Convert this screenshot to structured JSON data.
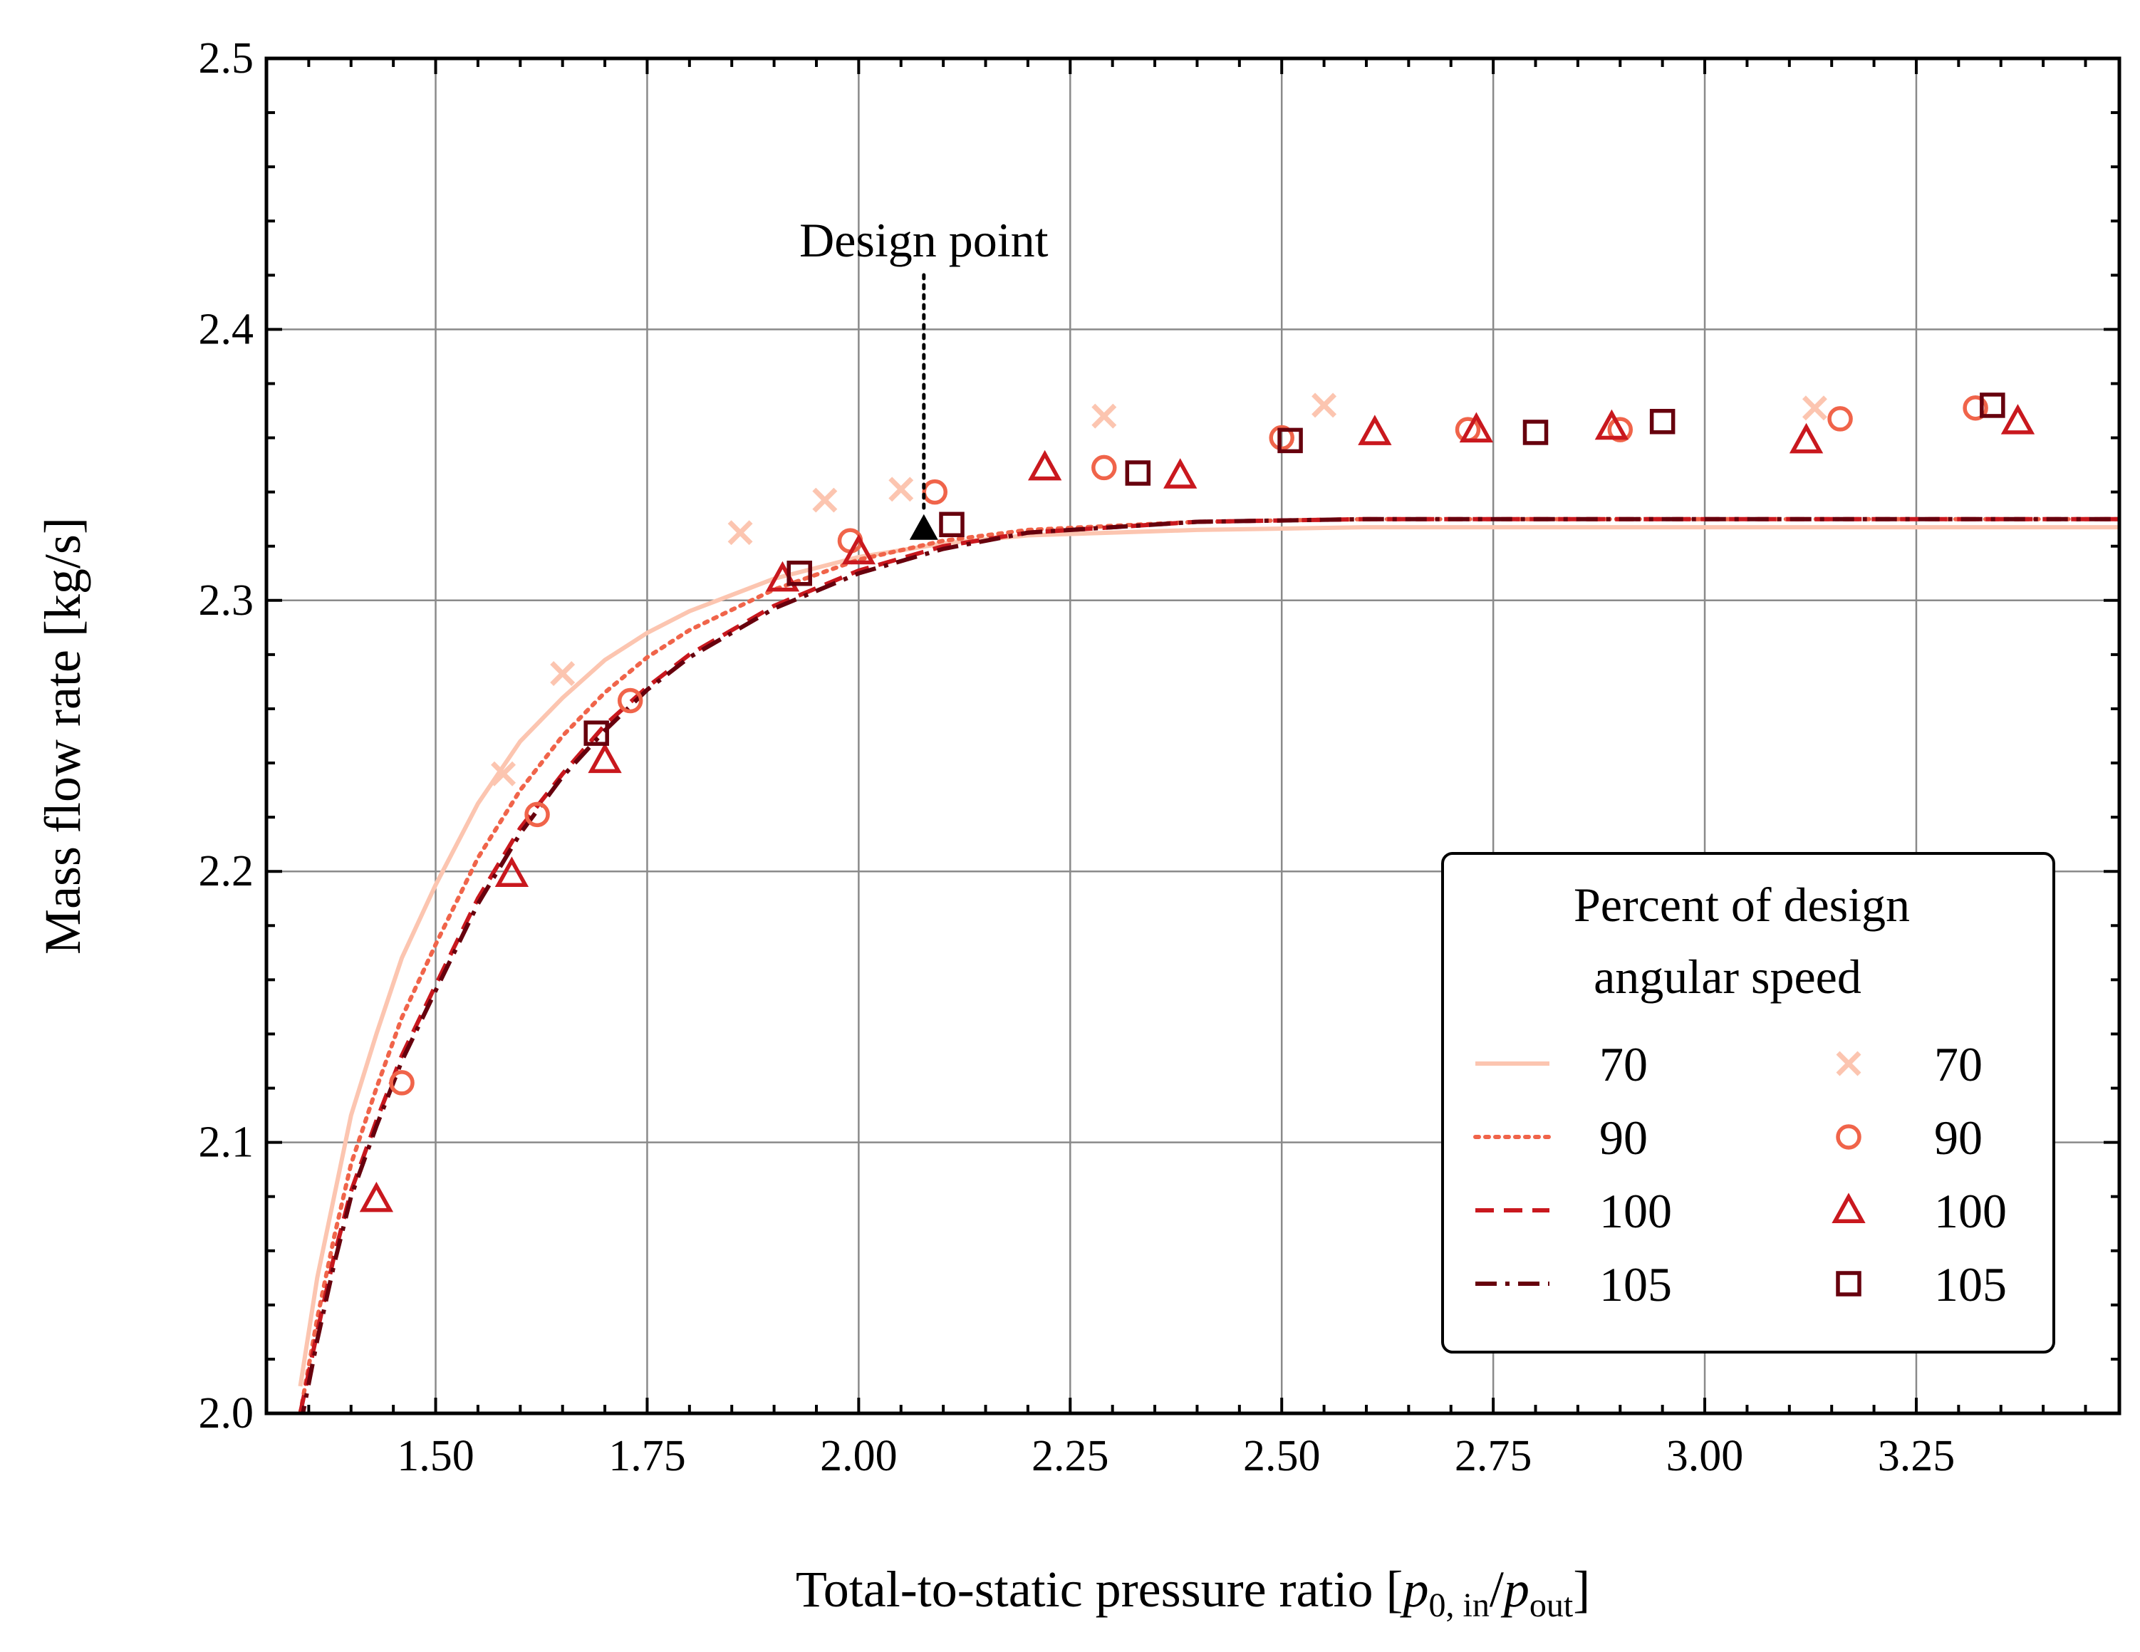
{
  "chart_data": {
    "type": "line",
    "xlabel": "Total-to-static pressure ratio [p0,in/pout]",
    "ylabel": "Mass flow rate [kg/s]",
    "xlim": [
      1.3,
      3.49
    ],
    "ylim": [
      2.0,
      2.5
    ],
    "xticks": [
      1.5,
      1.75,
      2.0,
      2.25,
      2.5,
      2.75,
      3.0,
      3.25
    ],
    "xtick_labels": [
      "1.50",
      "1.75",
      "2.00",
      "2.25",
      "2.50",
      "2.75",
      "3.00",
      "3.25"
    ],
    "yticks": [
      2.0,
      2.1,
      2.2,
      2.3,
      2.4,
      2.5
    ],
    "ytick_labels": [
      "2.0",
      "2.1",
      "2.2",
      "2.3",
      "2.4",
      "2.5"
    ],
    "grid": true,
    "legend": {
      "title_line1": "Percent of design",
      "title_line2": "angular speed",
      "placement": "bottom-right"
    },
    "annotation": {
      "text": "Design point",
      "x": 2.077,
      "y": 2.325
    },
    "lines": [
      {
        "name": "70",
        "color": "#fcc5b0",
        "dash": "solid",
        "x": [
          1.34,
          1.36,
          1.38,
          1.4,
          1.43,
          1.46,
          1.5,
          1.55,
          1.6,
          1.65,
          1.7,
          1.75,
          1.8,
          1.9,
          2.0,
          2.1,
          2.2,
          2.4,
          2.6,
          3.0,
          3.49
        ],
        "y": [
          2.01,
          2.05,
          2.08,
          2.11,
          2.14,
          2.168,
          2.195,
          2.225,
          2.248,
          2.264,
          2.278,
          2.288,
          2.296,
          2.308,
          2.316,
          2.321,
          2.324,
          2.326,
          2.327,
          2.327,
          2.327
        ]
      },
      {
        "name": "90",
        "color": "#f0644a",
        "dash": "dotted",
        "x": [
          1.34,
          1.36,
          1.38,
          1.4,
          1.43,
          1.46,
          1.5,
          1.55,
          1.6,
          1.65,
          1.7,
          1.75,
          1.8,
          1.9,
          2.0,
          2.1,
          2.2,
          2.4,
          2.6,
          3.0,
          3.49
        ],
        "y": [
          2.0,
          2.035,
          2.065,
          2.092,
          2.12,
          2.146,
          2.173,
          2.205,
          2.23,
          2.25,
          2.266,
          2.279,
          2.289,
          2.304,
          2.315,
          2.322,
          2.326,
          2.329,
          2.33,
          2.33,
          2.33
        ]
      },
      {
        "name": "100",
        "color": "#c9181e",
        "dash": "dashed",
        "x": [
          1.34,
          1.36,
          1.38,
          1.4,
          1.43,
          1.46,
          1.5,
          1.55,
          1.6,
          1.65,
          1.7,
          1.75,
          1.8,
          1.9,
          2.0,
          2.1,
          2.2,
          2.4,
          2.6,
          3.0,
          3.49
        ],
        "y": [
          2.0,
          2.03,
          2.058,
          2.082,
          2.108,
          2.132,
          2.158,
          2.19,
          2.216,
          2.236,
          2.254,
          2.268,
          2.28,
          2.298,
          2.311,
          2.32,
          2.325,
          2.329,
          2.33,
          2.33,
          2.33
        ]
      },
      {
        "name": "105",
        "color": "#67000d",
        "dash": "dashdot",
        "x": [
          1.34,
          1.36,
          1.38,
          1.4,
          1.43,
          1.46,
          1.5,
          1.55,
          1.6,
          1.65,
          1.7,
          1.75,
          1.8,
          1.9,
          2.0,
          2.1,
          2.2,
          2.4,
          2.6,
          3.0,
          3.49
        ],
        "y": [
          1.995,
          2.027,
          2.055,
          2.08,
          2.106,
          2.13,
          2.156,
          2.188,
          2.214,
          2.235,
          2.252,
          2.267,
          2.279,
          2.297,
          2.31,
          2.319,
          2.325,
          2.329,
          2.33,
          2.33,
          2.33
        ]
      }
    ],
    "series": [
      {
        "name": "70",
        "marker": "x",
        "color": "#fcc5b0",
        "x": [
          1.58,
          1.65,
          1.86,
          1.96,
          2.05,
          2.29,
          2.55,
          3.13
        ],
        "y": [
          2.236,
          2.273,
          2.325,
          2.337,
          2.341,
          2.368,
          2.372,
          2.371
        ]
      },
      {
        "name": "90",
        "marker": "circle",
        "color": "#f0644a",
        "x": [
          1.46,
          1.62,
          1.73,
          1.99,
          2.09,
          2.29,
          2.5,
          2.72,
          2.9,
          3.16,
          3.32
        ],
        "y": [
          2.122,
          2.221,
          2.263,
          2.322,
          2.34,
          2.349,
          2.36,
          2.363,
          2.363,
          2.367,
          2.371
        ]
      },
      {
        "name": "100",
        "marker": "triangle",
        "color": "#c9181e",
        "x": [
          1.43,
          1.59,
          1.7,
          1.91,
          2.0,
          2.22,
          2.38,
          2.61,
          2.73,
          2.89,
          3.12,
          3.37
        ],
        "y": [
          2.079,
          2.199,
          2.241,
          2.308,
          2.318,
          2.349,
          2.346,
          2.362,
          2.363,
          2.364,
          2.359,
          2.366
        ]
      },
      {
        "name": "105",
        "marker": "square",
        "color": "#67000d",
        "x": [
          1.69,
          1.93,
          2.11,
          2.33,
          2.51,
          2.8,
          2.95,
          3.34
        ],
        "y": [
          2.251,
          2.31,
          2.328,
          2.347,
          2.359,
          2.362,
          2.366,
          2.372
        ]
      }
    ]
  }
}
